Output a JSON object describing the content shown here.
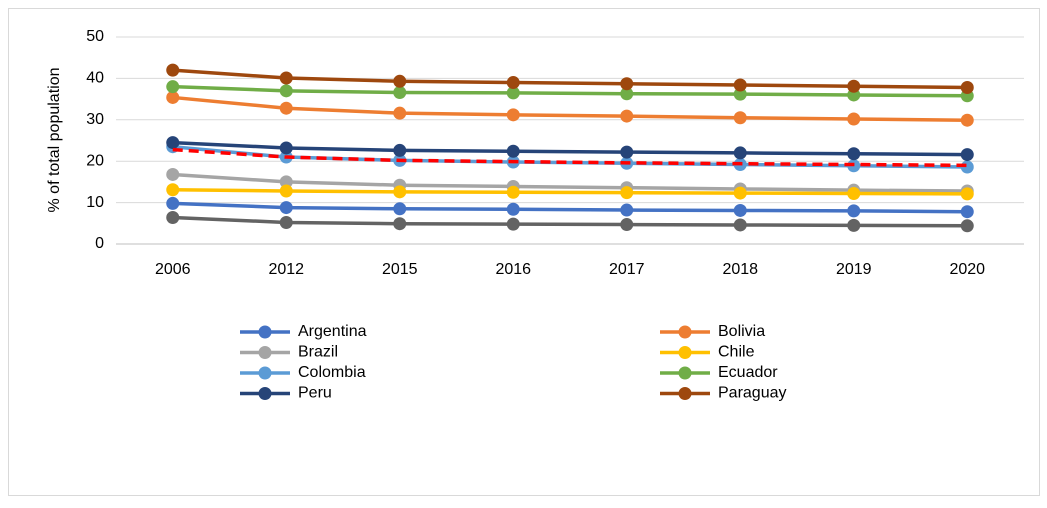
{
  "chart_data": {
    "type": "line",
    "y_label": "% of total population",
    "categories": [
      "2006",
      "2012",
      "2015",
      "2016",
      "2017",
      "2018",
      "2019",
      "2020"
    ],
    "ylim": [
      0,
      50
    ],
    "yticks": [
      0,
      10,
      20,
      30,
      40,
      50
    ],
    "grid": true,
    "legend": "bottom",
    "series": [
      {
        "name": "Argentina",
        "color": "#4472c4",
        "values": [
          9.8,
          8.8,
          8.5,
          8.4,
          8.2,
          8.1,
          8.0,
          7.8
        ]
      },
      {
        "name": "Bolivia",
        "color": "#ed7d31",
        "values": [
          35.4,
          32.8,
          31.6,
          31.2,
          30.9,
          30.5,
          30.2,
          29.9
        ]
      },
      {
        "name": "Brazil",
        "color": "#a5a5a5",
        "values": [
          16.8,
          15.0,
          14.2,
          13.9,
          13.6,
          13.3,
          13.0,
          12.8
        ]
      },
      {
        "name": "Chile",
        "color": "#ffc000",
        "values": [
          13.1,
          12.8,
          12.6,
          12.5,
          12.4,
          12.3,
          12.2,
          12.1
        ]
      },
      {
        "name": "Colombia",
        "color": "#5b9bd5",
        "values": [
          23.5,
          21.0,
          20.2,
          19.8,
          19.5,
          19.2,
          18.9,
          18.6
        ]
      },
      {
        "name": "Ecuador",
        "color": "#70ad47",
        "values": [
          38.0,
          37.0,
          36.6,
          36.5,
          36.3,
          36.2,
          36.0,
          35.8
        ]
      },
      {
        "name": "Peru",
        "color": "#264478",
        "values": [
          24.5,
          23.2,
          22.6,
          22.4,
          22.2,
          22.0,
          21.8,
          21.6
        ]
      },
      {
        "name": "Paraguay",
        "color": "#9e480e",
        "values": [
          42.0,
          40.1,
          39.3,
          39.0,
          38.7,
          38.4,
          38.1,
          37.8
        ]
      },
      {
        "color": "#636363",
        "values": [
          6.4,
          5.2,
          4.9,
          4.8,
          4.7,
          4.6,
          4.5,
          4.4
        ]
      },
      {
        "color": "#ff0000",
        "dashed": true,
        "markers": false,
        "values": [
          22.8,
          21.0,
          20.2,
          19.9,
          19.6,
          19.4,
          19.2,
          19.0
        ]
      }
    ]
  }
}
